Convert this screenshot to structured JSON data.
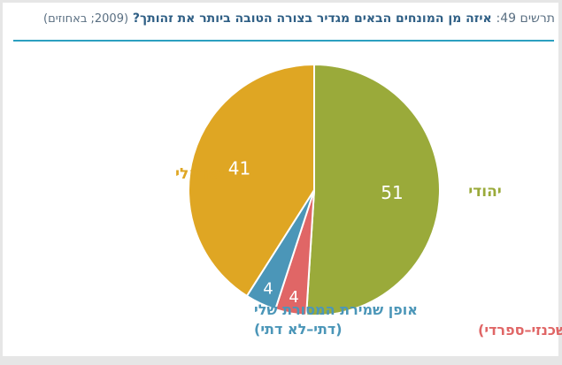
{
  "title": {
    "prefix": "תרשים 49:",
    "question": "איזה מן המונחים הבאים מגדיר בצורה הטובה ביותר את זהותך?",
    "note": "(2009; באחוזים)"
  },
  "chart_data": {
    "type": "pie",
    "title": "איזה מן המונחים הבאים מגדיר בצורה הטובה ביותר את זהותך?",
    "unit": "%",
    "year": 2009,
    "slices": [
      {
        "name": "יהודי",
        "value": 51,
        "value_label": "51",
        "color": "#9aaa3a",
        "label_lines": [
          "יהודי"
        ]
      },
      {
        "name": "העדה שלי (אשכנזי-ספרדי)",
        "value": 4,
        "value_label": "4",
        "color": "#e06666",
        "label_lines": [
          "העדה שלי (אשכנזי–ספרדי)"
        ]
      },
      {
        "name": "אופן שמירת המסורת שלי (דתי-לא דתי)",
        "value": 4,
        "value_label": "4",
        "color": "#4b96b8",
        "label_lines": [
          "אופן שמירת המסורת שלי",
          "(דתי–לא דתי)"
        ]
      },
      {
        "name": "ישראלי",
        "value": 41,
        "value_label": "41",
        "color": "#dfa623",
        "label_lines": [
          "ישראלי"
        ]
      }
    ]
  }
}
